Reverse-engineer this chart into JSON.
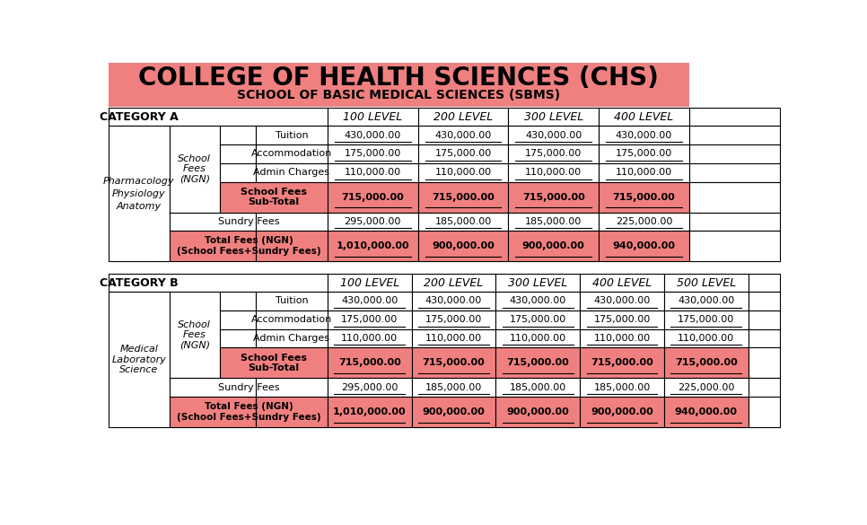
{
  "title1": "COLLEGE OF HEALTH SCIENCES (CHS)",
  "title2": "SCHOOL OF BASIC MEDICAL SCIENCES (SBMS)",
  "pink": "#F08080",
  "white": "#FFFFFF",
  "cat_a": {
    "label": "CATEGORY A",
    "levels": [
      "100 LEVEL",
      "200 LEVEL",
      "300 LEVEL",
      "400 LEVEL"
    ],
    "programs": [
      "Anatomy",
      "Physiology",
      "Pharmacology"
    ],
    "rows": [
      {
        "label": "Tuition",
        "values": [
          "430,000.00",
          "430,000.00",
          "430,000.00",
          "430,000.00"
        ],
        "bg": "white",
        "bold": false,
        "span_school": true
      },
      {
        "label": "Accommodation",
        "values": [
          "175,000.00",
          "175,000.00",
          "175,000.00",
          "175,000.00"
        ],
        "bg": "white",
        "bold": false,
        "span_school": true
      },
      {
        "label": "Admin Charges",
        "values": [
          "110,000.00",
          "110,000.00",
          "110,000.00",
          "110,000.00"
        ],
        "bg": "white",
        "bold": false,
        "span_school": true
      },
      {
        "label": "School Fees\nSub-Total",
        "values": [
          "715,000.00",
          "715,000.00",
          "715,000.00",
          "715,000.00"
        ],
        "bg": "pink",
        "bold": true,
        "span_school": true
      },
      {
        "label": "Sundry Fees",
        "values": [
          "295,000.00",
          "185,000.00",
          "185,000.00",
          "225,000.00"
        ],
        "bg": "white",
        "bold": false,
        "span_school": false
      },
      {
        "label": "Total Fees (NGN)\n(School Fees+Sundry Fees)",
        "values": [
          "1,010,000.00",
          "900,000.00",
          "900,000.00",
          "940,000.00"
        ],
        "bg": "pink",
        "bold": true,
        "span_school": false
      }
    ]
  },
  "cat_b": {
    "label": "CATEGORY B",
    "levels": [
      "100 LEVEL",
      "200 LEVEL",
      "300 LEVEL",
      "400 LEVEL",
      "500 LEVEL"
    ],
    "programs": [
      "Medical\nLaboratory\nScience"
    ],
    "rows": [
      {
        "label": "Tuition",
        "values": [
          "430,000.00",
          "430,000.00",
          "430,000.00",
          "430,000.00",
          "430,000.00"
        ],
        "bg": "white",
        "bold": false,
        "span_school": true
      },
      {
        "label": "Accommodation",
        "values": [
          "175,000.00",
          "175,000.00",
          "175,000.00",
          "175,000.00",
          "175,000.00"
        ],
        "bg": "white",
        "bold": false,
        "span_school": true
      },
      {
        "label": "Admin Charges",
        "values": [
          "110,000.00",
          "110,000.00",
          "110,000.00",
          "110,000.00",
          "110,000.00"
        ],
        "bg": "white",
        "bold": false,
        "span_school": true
      },
      {
        "label": "School Fees\nSub-Total",
        "values": [
          "715,000.00",
          "715,000.00",
          "715,000.00",
          "715,000.00",
          "715,000.00"
        ],
        "bg": "pink",
        "bold": true,
        "span_school": true
      },
      {
        "label": "Sundry Fees",
        "values": [
          "295,000.00",
          "185,000.00",
          "185,000.00",
          "185,000.00",
          "225,000.00"
        ],
        "bg": "white",
        "bold": false,
        "span_school": false
      },
      {
        "label": "Total Fees (NGN)\n(School Fees+Sundry Fees)",
        "values": [
          "1,010,000.00",
          "900,000.00",
          "900,000.00",
          "900,000.00",
          "940,000.00"
        ],
        "bg": "pink",
        "bold": true,
        "span_school": false
      }
    ]
  }
}
